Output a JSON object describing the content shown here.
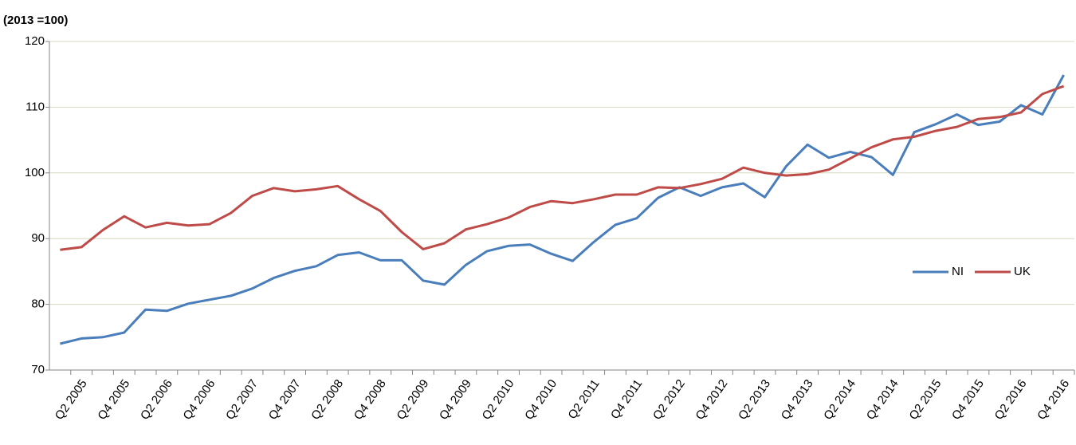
{
  "chart_data": {
    "type": "line",
    "y_axis_label": "(2013 =100)",
    "categories": [
      null,
      "Q2 2005",
      null,
      "Q4 2005",
      null,
      "Q2 2006",
      null,
      "Q4 2006",
      null,
      "Q2 2007",
      null,
      "Q4 2007",
      null,
      "Q2 2008",
      null,
      "Q4 2008",
      null,
      "Q2 2009",
      null,
      "Q4 2009",
      null,
      "Q2 2010",
      null,
      "Q4 2010",
      null,
      "Q2 2011",
      null,
      "Q4 2011",
      null,
      "Q2 2012",
      null,
      "Q4 2012",
      null,
      "Q2 2013",
      null,
      "Q4 2013",
      null,
      "Q2 2014",
      null,
      "Q4 2014",
      null,
      "Q2 2015",
      null,
      "Q4 2015",
      null,
      "Q2 2016",
      null,
      "Q4 2016"
    ],
    "series": [
      {
        "name": "NI",
        "color": "#4a7ebb",
        "values": [
          74.0,
          74.8,
          75.0,
          75.7,
          79.2,
          79.0,
          80.1,
          80.7,
          81.3,
          82.4,
          84.0,
          85.1,
          85.8,
          87.5,
          87.9,
          86.7,
          86.7,
          83.6,
          83.0,
          86.0,
          88.1,
          88.9,
          89.1,
          87.7,
          86.6,
          89.5,
          92.1,
          93.1,
          96.2,
          97.8,
          96.5,
          97.8,
          98.4,
          96.3,
          101.0,
          104.3,
          102.3,
          103.2,
          102.4,
          99.7,
          106.2,
          107.4,
          108.9,
          107.3,
          107.8,
          110.3,
          108.9,
          114.9
        ]
      },
      {
        "name": "UK",
        "color": "#be4b48",
        "values": [
          88.3,
          88.7,
          91.3,
          93.4,
          91.7,
          92.4,
          92.0,
          92.2,
          93.9,
          96.5,
          97.7,
          97.2,
          97.5,
          98.0,
          96.0,
          94.2,
          91.0,
          88.4,
          89.3,
          91.4,
          92.2,
          93.2,
          94.8,
          95.7,
          95.4,
          96.0,
          96.7,
          96.7,
          97.8,
          97.7,
          98.3,
          99.1,
          100.8,
          100.0,
          99.6,
          99.8,
          100.5,
          102.2,
          103.9,
          105.1,
          105.5,
          106.4,
          107.0,
          108.2,
          108.5,
          109.2,
          112.0,
          113.2
        ]
      }
    ],
    "ylim": [
      70,
      120
    ],
    "yticks": [
      70,
      80,
      90,
      100,
      110,
      120
    ],
    "grid": true,
    "legend": "right"
  }
}
